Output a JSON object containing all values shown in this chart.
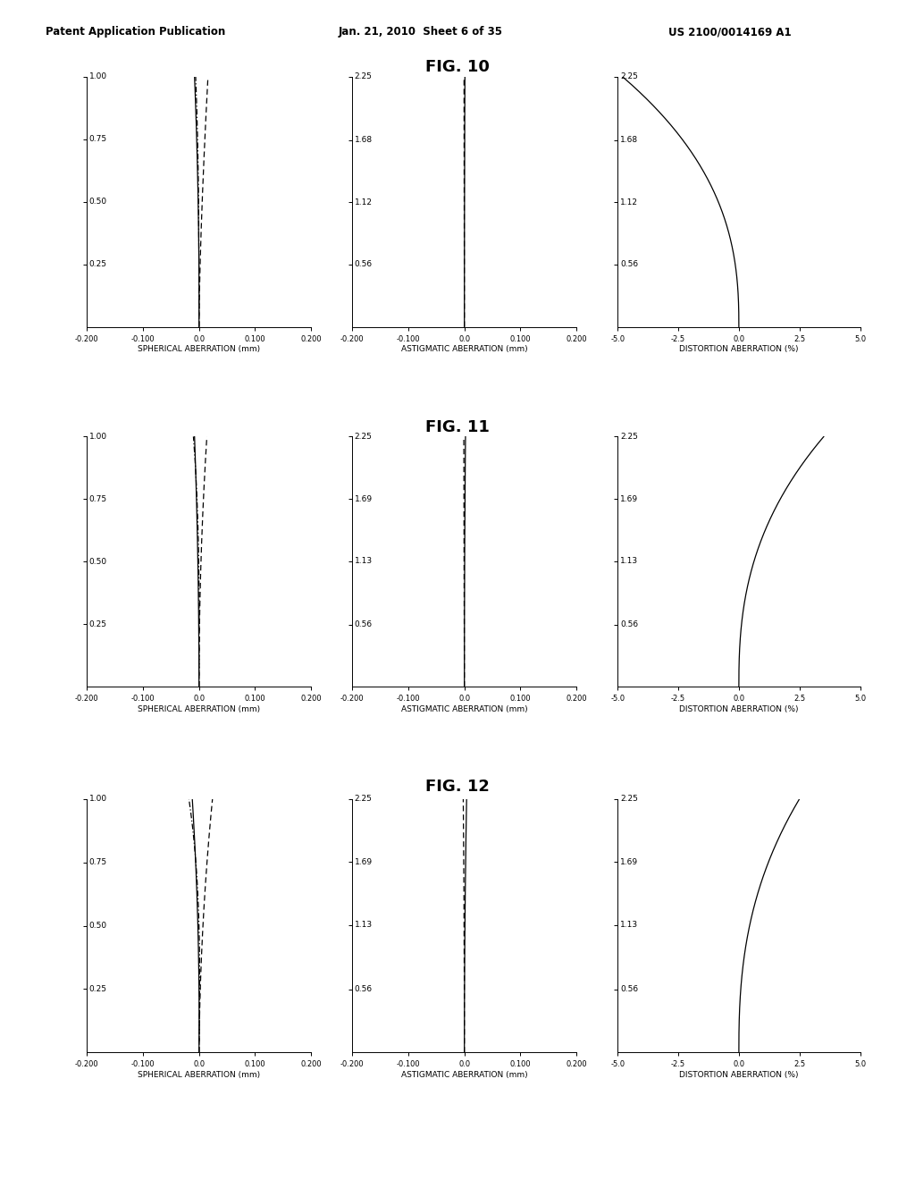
{
  "header_left": "Patent Application Publication",
  "header_mid": "Jan. 21, 2010  Sheet 6 of 35",
  "header_right": "US 2100/0014169 A1",
  "figures": [
    {
      "title": "FIG. 10",
      "charts": [
        {
          "type": "spherical",
          "xlabel": "SPHERICAL ABERRATION (mm)",
          "xlim": [
            -0.2,
            0.2
          ],
          "xticks": [
            -0.2,
            -0.1,
            0.0,
            0.1,
            0.2
          ],
          "xtick_labels": [
            "-0.200",
            "-0.100",
            "0.0",
            "0.100",
            "0.200"
          ],
          "ylim": [
            0.0,
            1.0
          ],
          "yticks": [
            0.25,
            0.5,
            0.75,
            1.0
          ],
          "ytick_labels": [
            "0.25",
            "0.50",
            "0.75",
            "1.00"
          ]
        },
        {
          "type": "astigmatic",
          "xlabel": "ASTIGMATIC ABERRATION (mm)",
          "xlim": [
            -0.2,
            0.2
          ],
          "xticks": [
            -0.2,
            -0.1,
            0.0,
            0.1,
            0.2
          ],
          "xtick_labels": [
            "-0.200",
            "-0.100",
            "0.0",
            "0.100",
            "0.200"
          ],
          "ylim": [
            0.0,
            2.25
          ],
          "yticks": [
            0.56,
            1.12,
            1.68,
            2.25
          ],
          "ytick_labels": [
            "0.56",
            "1.12",
            "1.68",
            "2.25"
          ]
        },
        {
          "type": "distortion",
          "xlabel": "DISTORTION ABERRATION (%)",
          "xlim": [
            -5.0,
            5.0
          ],
          "xticks": [
            -5.0,
            -2.5,
            0.0,
            2.5,
            5.0
          ],
          "xtick_labels": [
            "-5.0",
            "-2.5",
            "0.0",
            "2.5",
            "5.0"
          ],
          "ylim": [
            0.0,
            2.25
          ],
          "yticks": [
            0.56,
            1.12,
            1.68,
            2.25
          ],
          "ytick_labels": [
            "0.56",
            "1.12",
            "1.68",
            "2.25"
          ],
          "dist_dir": -1,
          "dist_mag": 4.8
        }
      ]
    },
    {
      "title": "FIG. 11",
      "charts": [
        {
          "type": "spherical",
          "xlabel": "SPHERICAL ABERRATION (mm)",
          "xlim": [
            -0.2,
            0.2
          ],
          "xticks": [
            -0.2,
            -0.1,
            0.0,
            0.1,
            0.2
          ],
          "xtick_labels": [
            "-0.200",
            "-0.100",
            "0.0",
            "0.100",
            "0.200"
          ],
          "ylim": [
            0.0,
            1.0
          ],
          "yticks": [
            0.25,
            0.5,
            0.75,
            1.0
          ],
          "ytick_labels": [
            "0.25",
            "0.50",
            "0.75",
            "1.00"
          ]
        },
        {
          "type": "astigmatic",
          "xlabel": "ASTIGMATIC ABERRATION (mm)",
          "xlim": [
            -0.2,
            0.2
          ],
          "xticks": [
            -0.2,
            -0.1,
            0.0,
            0.1,
            0.2
          ],
          "xtick_labels": [
            "-0.200",
            "-0.100",
            "0.0",
            "0.100",
            "0.200"
          ],
          "ylim": [
            0.0,
            2.25
          ],
          "yticks": [
            0.56,
            1.13,
            1.69,
            2.25
          ],
          "ytick_labels": [
            "0.56",
            "1.13",
            "1.69",
            "2.25"
          ]
        },
        {
          "type": "distortion",
          "xlabel": "DISTORTION ABERRATION (%)",
          "xlim": [
            -5.0,
            5.0
          ],
          "xticks": [
            -5.0,
            -2.5,
            0.0,
            2.5,
            5.0
          ],
          "xtick_labels": [
            "-5.0",
            "-2.5",
            "0.0",
            "2.5",
            "5.0"
          ],
          "ylim": [
            0.0,
            2.25
          ],
          "yticks": [
            0.56,
            1.13,
            1.69,
            2.25
          ],
          "ytick_labels": [
            "0.56",
            "1.13",
            "1.69",
            "2.25"
          ],
          "dist_dir": 1,
          "dist_mag": 3.5
        }
      ]
    },
    {
      "title": "FIG. 12",
      "charts": [
        {
          "type": "spherical",
          "xlabel": "SPHERICAL ABERRATION (mm)",
          "xlim": [
            -0.2,
            0.2
          ],
          "xticks": [
            -0.2,
            -0.1,
            0.0,
            0.1,
            0.2
          ],
          "xtick_labels": [
            "-0.200",
            "-0.100",
            "0.0",
            "0.100",
            "0.200"
          ],
          "ylim": [
            0.0,
            1.0
          ],
          "yticks": [
            0.25,
            0.5,
            0.75,
            1.0
          ],
          "ytick_labels": [
            "0.25",
            "0.50",
            "0.75",
            "1.00"
          ]
        },
        {
          "type": "astigmatic",
          "xlabel": "ASTIGMATIC ABERRATION (mm)",
          "xlim": [
            -0.2,
            0.2
          ],
          "xticks": [
            -0.2,
            -0.1,
            0.0,
            0.1,
            0.2
          ],
          "xtick_labels": [
            "-0.200",
            "-0.100",
            "0.0",
            "0.100",
            "0.200"
          ],
          "ylim": [
            0.0,
            2.25
          ],
          "yticks": [
            0.56,
            1.13,
            1.69,
            2.25
          ],
          "ytick_labels": [
            "0.56",
            "1.13",
            "1.69",
            "2.25"
          ]
        },
        {
          "type": "distortion",
          "xlabel": "DISTORTION ABERRATION (%)",
          "xlim": [
            -5.0,
            5.0
          ],
          "xticks": [
            -5.0,
            -2.5,
            0.0,
            2.5,
            5.0
          ],
          "xtick_labels": [
            "-5.0",
            "-2.5",
            "0.0",
            "2.5",
            "5.0"
          ],
          "ylim": [
            0.0,
            2.25
          ],
          "yticks": [
            0.56,
            1.13,
            1.69,
            2.25
          ],
          "ytick_labels": [
            "0.56",
            "1.13",
            "1.69",
            "2.25"
          ],
          "dist_dir": 1,
          "dist_mag": 2.5
        }
      ]
    }
  ]
}
